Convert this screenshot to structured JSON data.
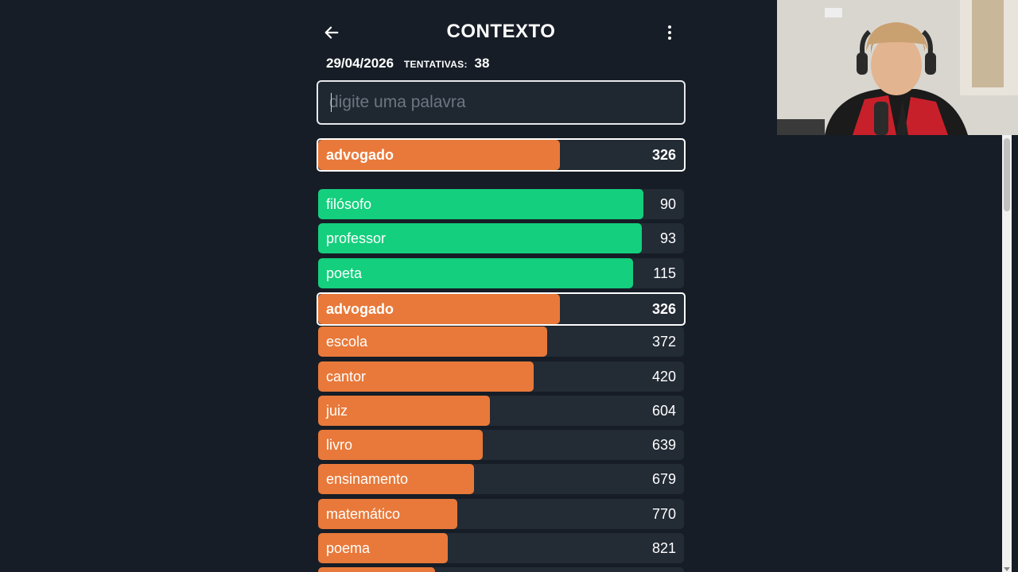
{
  "header": {
    "title": "CONTEXTO",
    "back_icon": "arrow-left-icon",
    "menu_icon": "more-vertical-icon"
  },
  "info": {
    "date": "29/04/2026",
    "attempts_label": "TENTATIVAS:",
    "attempts_count": "38"
  },
  "search": {
    "placeholder": "digite uma palavra",
    "value": ""
  },
  "current_guess": {
    "word": "advogado",
    "rank": "326",
    "proximity": 0.66,
    "color": "#e8793a"
  },
  "guesses": [
    {
      "word": "filósofo",
      "rank": "90",
      "proximity": 0.89,
      "color": "#14cf7d"
    },
    {
      "word": "professor",
      "rank": "93",
      "proximity": 0.885,
      "color": "#14cf7d"
    },
    {
      "word": "poeta",
      "rank": "115",
      "proximity": 0.86,
      "color": "#14cf7d"
    },
    {
      "word": "advogado",
      "rank": "326",
      "proximity": 0.66,
      "color": "#e8793a",
      "current": true
    },
    {
      "word": "escola",
      "rank": "372",
      "proximity": 0.625,
      "color": "#e8793a"
    },
    {
      "word": "cantor",
      "rank": "420",
      "proximity": 0.59,
      "color": "#e8793a"
    },
    {
      "word": "juiz",
      "rank": "604",
      "proximity": 0.47,
      "color": "#e8793a"
    },
    {
      "word": "livro",
      "rank": "639",
      "proximity": 0.45,
      "color": "#e8793a"
    },
    {
      "word": "ensinamento",
      "rank": "679",
      "proximity": 0.425,
      "color": "#e8793a"
    },
    {
      "word": "matemático",
      "rank": "770",
      "proximity": 0.38,
      "color": "#e8793a"
    },
    {
      "word": "poema",
      "rank": "821",
      "proximity": 0.355,
      "color": "#e8793a"
    },
    {
      "word": "",
      "rank": "",
      "proximity": 0.32,
      "color": "#e8793a"
    }
  ],
  "colors": {
    "background": "#161d26",
    "row_background": "#232b35",
    "close": "#14cf7d",
    "medium": "#e8793a"
  },
  "webcam": {
    "icon": "webcam-overlay-person"
  }
}
